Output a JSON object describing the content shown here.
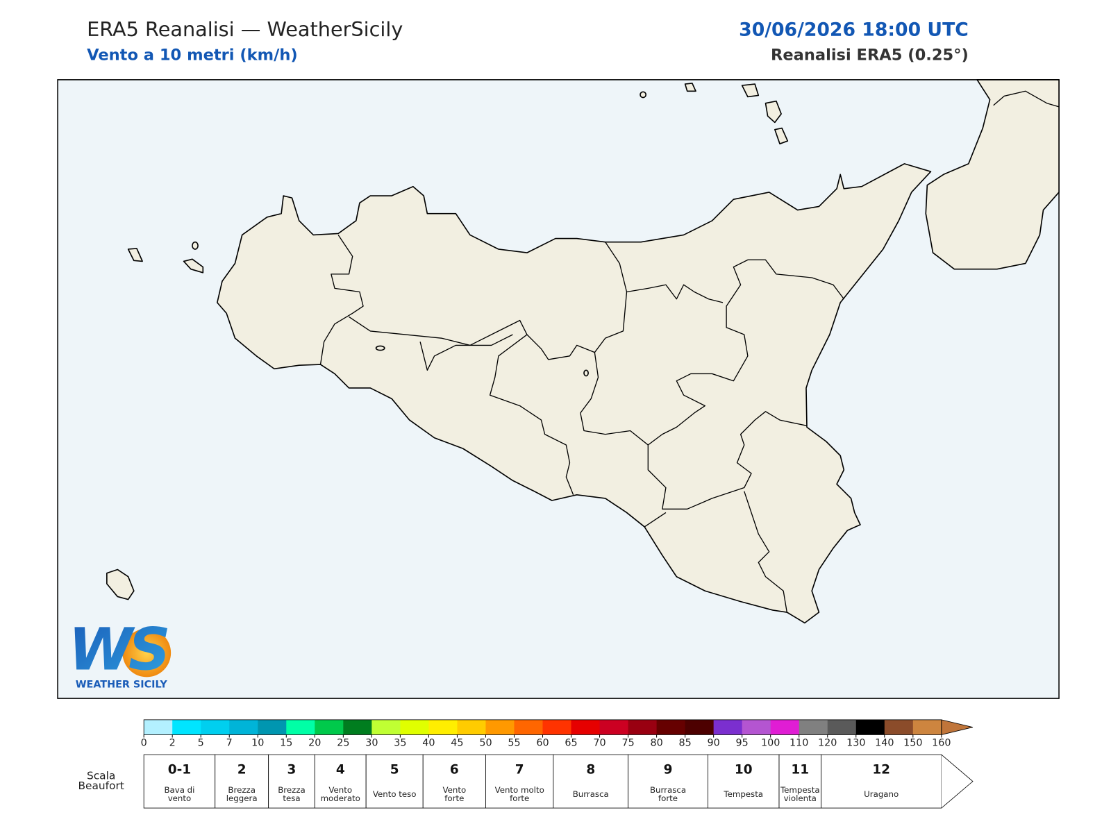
{
  "header": {
    "title": "ERA5 Reanalisi — WeatherSicily",
    "subtitle": "Vento a 10 metri (km/h)",
    "datetime": "30/06/2026 18:00 UTC",
    "source": "Reanalisi ERA5 (0.25°)"
  },
  "logo": {
    "mark": "WS",
    "text": "WEATHER SICILY"
  },
  "colorbar": {
    "ticks": [
      0,
      2,
      5,
      7,
      10,
      15,
      20,
      25,
      30,
      35,
      40,
      45,
      50,
      55,
      60,
      65,
      70,
      75,
      80,
      85,
      90,
      95,
      100,
      110,
      120,
      130,
      140,
      150,
      160
    ],
    "colors": [
      "#b3f0ff",
      "#00e5ff",
      "#00cfef",
      "#00b4d8",
      "#0096b0",
      "#00ffa6",
      "#00c94b",
      "#007d1f",
      "#c0ff33",
      "#e0ff00",
      "#ffee00",
      "#ffcc00",
      "#ff9900",
      "#ff6600",
      "#ff3300",
      "#e60000",
      "#cc0022",
      "#990011",
      "#660000",
      "#4d0000",
      "#7b2fcf",
      "#b455d1",
      "#e01dd4",
      "#808080",
      "#5a5a5a",
      "#000000",
      "#8b4c2a",
      "#cd853f"
    ],
    "extend_color": "#c0753a"
  },
  "beaufort": {
    "title": [
      "Scala",
      "Beaufort"
    ],
    "classes": [
      {
        "force": "0-1",
        "desc": [
          "Bava di",
          "vento"
        ]
      },
      {
        "force": "2",
        "desc": [
          "Brezza",
          "leggera"
        ]
      },
      {
        "force": "3",
        "desc": [
          "Brezza",
          "tesa"
        ]
      },
      {
        "force": "4",
        "desc": [
          "Vento",
          "moderato"
        ]
      },
      {
        "force": "5",
        "desc": [
          "Vento teso"
        ]
      },
      {
        "force": "6",
        "desc": [
          "Vento",
          "forte"
        ]
      },
      {
        "force": "7",
        "desc": [
          "Vento molto",
          "forte"
        ]
      },
      {
        "force": "8",
        "desc": [
          "Burrasca"
        ]
      },
      {
        "force": "9",
        "desc": [
          "Burrasca",
          "forte"
        ]
      },
      {
        "force": "10",
        "desc": [
          "Tempesta"
        ]
      },
      {
        "force": "11",
        "desc": [
          "Tempesta",
          "violenta"
        ]
      },
      {
        "force": "12",
        "desc": [
          "Uragano"
        ]
      }
    ]
  }
}
